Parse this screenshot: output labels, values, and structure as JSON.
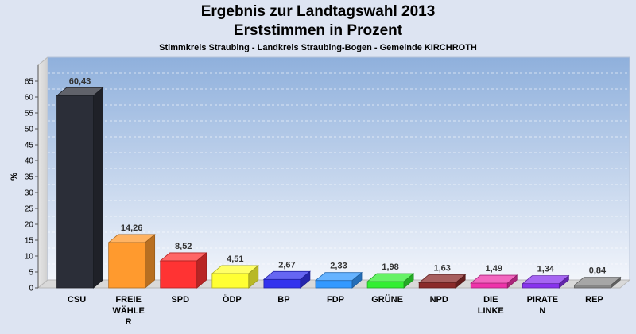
{
  "chart_data": {
    "type": "bar",
    "title": "Ergebnis zur Landtagswahl 2013",
    "title2": "Erststimmen in Prozent",
    "subtitle": "Stimmkreis Straubing - Landkreis Straubing-Bogen - Gemeinde KIRCHROTH",
    "ylabel": "%",
    "ylim": [
      0,
      70
    ],
    "yticks": [
      0,
      5,
      10,
      15,
      20,
      25,
      30,
      35,
      40,
      45,
      50,
      55,
      60,
      65
    ],
    "grid": true,
    "categories": [
      [
        "CSU"
      ],
      [
        "FREIE",
        "WÄHLE",
        "R"
      ],
      [
        "SPD"
      ],
      [
        "ÖDP"
      ],
      [
        "BP"
      ],
      [
        "FDP"
      ],
      [
        "GRÜNE"
      ],
      [
        "NPD"
      ],
      [
        "DIE",
        "LINKE"
      ],
      [
        "PIRATE",
        "N"
      ],
      [
        "REP"
      ]
    ],
    "values": [
      60.43,
      14.26,
      8.52,
      4.51,
      2.67,
      2.33,
      1.98,
      1.63,
      1.49,
      1.34,
      0.84
    ],
    "value_labels": [
      "60,43",
      "14,26",
      "8,52",
      "4,51",
      "2,67",
      "2,33",
      "1,98",
      "1,63",
      "1,49",
      "1,34",
      "0,84"
    ],
    "colors": [
      "#2b2e38",
      "#ff9a2e",
      "#ff3333",
      "#ffff33",
      "#3333ee",
      "#3399ff",
      "#33ee33",
      "#8a2a2a",
      "#ee33aa",
      "#8833ee",
      "#888888"
    ]
  }
}
